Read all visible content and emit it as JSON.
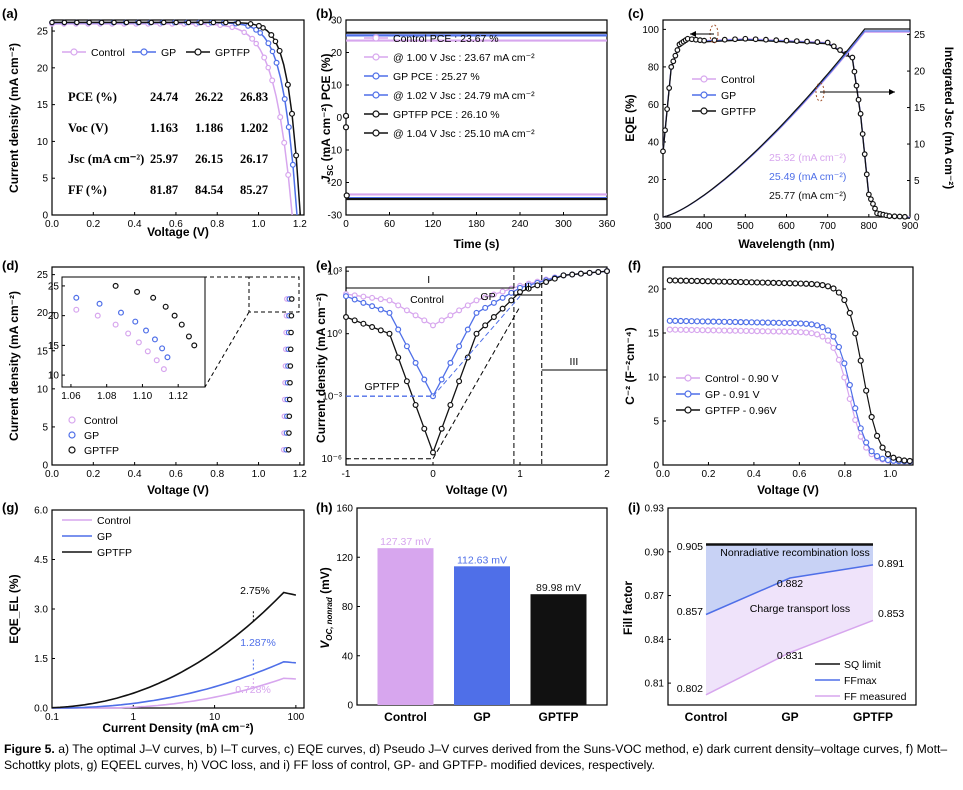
{
  "colors": {
    "control": "#d7a6ee",
    "control_dark": "#b07fd6",
    "gp": "#4f6fe8",
    "gptfp": "#111111"
  },
  "panels": {
    "a": {
      "label": "(a)",
      "xlabel": "Voltage (V)",
      "ylabel": "Current density (mA cm⁻²)",
      "xticks": [
        "0.0",
        "0.2",
        "0.4",
        "0.6",
        "0.8",
        "1.0",
        "1.2"
      ],
      "yticks": [
        "0",
        "5",
        "10",
        "15",
        "20",
        "25"
      ],
      "legend": [
        "Control",
        "GP",
        "GPTFP"
      ],
      "table": {
        "cols": [
          "",
          "Control",
          "GP",
          "GPTFP"
        ],
        "rows": [
          [
            "PCE (%)",
            "24.74",
            "26.22",
            "26.83"
          ],
          [
            "Voc (V)",
            "1.163",
            "1.186",
            "1.202"
          ],
          [
            "Jsc (mA cm⁻²)",
            "25.97",
            "26.15",
            "26.17"
          ],
          [
            "FF (%)",
            "81.87",
            "84.54",
            "85.27"
          ]
        ]
      }
    },
    "b": {
      "label": "(b)",
      "xlabel": "Time (s)",
      "ylabel_left": "J",
      "ylabel_left_sub": "SC",
      "ylabel_left_rest": " (mA cm⁻²) PCE (%)",
      "xticks": [
        "0",
        "60",
        "120",
        "180",
        "240",
        "300",
        "360"
      ],
      "yticks": [
        "-30",
        "-20",
        "-10",
        "0",
        "10",
        "20",
        "30"
      ],
      "legend": [
        "Control           PCE : 23.67 %",
        "@ 1.00 V Jsc : 23.67 mA cm⁻²",
        "GP                  PCE : 25.27 %",
        "@ 1.02 V Jsc : 24.79 mA cm⁻²",
        "GPTFP  PCE : 26.10 %",
        "@ 1.04 V Jsc : 25.10 mA cm⁻²"
      ]
    },
    "c": {
      "label": "(c)",
      "xlabel": "Wavelength (nm)",
      "ylabel": "EQE (%)",
      "ylabel_right": "Integrated Jsc (mA cm⁻²)",
      "xticks": [
        "300",
        "400",
        "500",
        "600",
        "700",
        "800",
        "900"
      ],
      "yticks": [
        "0",
        "20",
        "40",
        "60",
        "80",
        "100"
      ],
      "yticks_right": [
        "0",
        "5",
        "10",
        "15",
        "20",
        "25"
      ],
      "legend": [
        "Control",
        "GP",
        "GPTFP"
      ],
      "integrated": [
        "25.32 (mA cm⁻²)",
        "25.49 (mA cm⁻²)",
        "25.77 (mA cm⁻²)"
      ]
    },
    "d": {
      "label": "(d)",
      "xlabel": "Voltage (V)",
      "ylabel": "Current density (mA cm⁻²)",
      "xticks": [
        "0.0",
        "0.2",
        "0.4",
        "0.6",
        "0.8",
        "1.0",
        "1.2"
      ],
      "yticks": [
        "0",
        "5",
        "10",
        "15",
        "20",
        "25"
      ],
      "inset_xticks": [
        "1.06",
        "1.08",
        "1.10",
        "1.12"
      ],
      "inset_yticks": [
        "10",
        "15",
        "20",
        "25"
      ],
      "legend": [
        "Control",
        "GP",
        "GPTFP"
      ]
    },
    "e": {
      "label": "(e)",
      "xlabel": "Voltage (V)",
      "ylabel": "Current density (mA cm⁻²)",
      "xticks": [
        "-1",
        "0",
        "1",
        "2"
      ],
      "yticks": [
        "10⁻⁶",
        "10⁻³",
        "10⁰",
        "10³"
      ],
      "regions": [
        "I",
        "II",
        "III"
      ],
      "annotations": [
        "Control",
        "GP",
        "GPTFP"
      ]
    },
    "f": {
      "label": "(f)",
      "xlabel": "Voltage (V)",
      "ylabel": "C⁻² (F⁻²cm⁻⁴)",
      "xticks": [
        "0.0",
        "0.2",
        "0.4",
        "0.6",
        "0.8",
        "1.0"
      ],
      "yticks": [
        "0",
        "5",
        "10",
        "15",
        "20"
      ],
      "legend": [
        "Control - 0.90 V",
        "GP - 0.91 V",
        "GPTFP - 0.96V"
      ]
    },
    "g": {
      "label": "(g)",
      "xlabel": "Current Density (mA cm⁻²)",
      "ylabel": "EQE_EL (%)",
      "xticks": [
        "0.1",
        "1",
        "10",
        "100"
      ],
      "yticks": [
        "0.0",
        "1.5",
        "3.0",
        "4.5",
        "6.0"
      ],
      "legend": [
        "Control",
        "GP",
        "GPTFP"
      ],
      "annotations": [
        "2.75%",
        "1.287%",
        "0.728%"
      ]
    },
    "i": {
      "label": "(i)",
      "ylabel": "Fill factor",
      "yticks": [
        "0.81",
        "0.84",
        "0.87",
        "0.90",
        "0.93"
      ],
      "labels": [
        "Nonradiative recombination loss",
        "Charge transport loss"
      ],
      "legend": [
        "SQ limit",
        "FFmax",
        "FF measured"
      ],
      "values": [
        "0.905",
        "0.857",
        "0.882",
        "0.891",
        "0.802",
        "0.831",
        "0.853"
      ]
    }
  },
  "chart_data": [
    {
      "type": "line",
      "title": "(a) J–V curves",
      "xlabel": "Voltage (V)",
      "ylabel": "Current density (mA cm⁻²)",
      "xlim": [
        0,
        1.22
      ],
      "ylim": [
        0,
        26.5
      ],
      "series": [
        {
          "name": "Control",
          "voc": 1.163,
          "jsc": 25.97
        },
        {
          "name": "GP",
          "voc": 1.186,
          "jsc": 26.15
        },
        {
          "name": "GPTFP",
          "voc": 1.202,
          "jsc": 26.17
        }
      ]
    },
    {
      "type": "line",
      "title": "(b) I–T curves",
      "xlabel": "Time (s)",
      "xlim": [
        0,
        360
      ],
      "ylim": [
        -30,
        30
      ],
      "series": [
        {
          "name": "Control PCE",
          "value": 23.67
        },
        {
          "name": "Control Jsc",
          "value": -23.67
        },
        {
          "name": "GP PCE",
          "value": 25.27
        },
        {
          "name": "GP Jsc",
          "value": -24.79
        },
        {
          "name": "GPTFP PCE",
          "value": 26.1
        },
        {
          "name": "GPTFP Jsc",
          "value": -25.1
        }
      ]
    },
    {
      "type": "line",
      "title": "(c) EQE curves",
      "xlabel": "Wavelength (nm)",
      "ylabel": "EQE (%)",
      "xlim": [
        300,
        900
      ],
      "ylim": [
        0,
        105
      ],
      "x": [
        300,
        320,
        340,
        360,
        400,
        500,
        600,
        700,
        760,
        780,
        800,
        820,
        850,
        900
      ],
      "series": [
        {
          "name": "EQE",
          "values": [
            35,
            80,
            92,
            95,
            94,
            95,
            94,
            93,
            85,
            55,
            12,
            2,
            0.5,
            0
          ]
        },
        {
          "name": "Integrated Jsc Control",
          "final": 25.32
        },
        {
          "name": "Integrated Jsc GP",
          "final": 25.49
        },
        {
          "name": "Integrated Jsc GPTFP",
          "final": 25.77
        }
      ]
    },
    {
      "type": "scatter",
      "title": "(d) Pseudo J–V",
      "xlabel": "Voltage (V)",
      "ylabel": "Current density (mA cm⁻²)",
      "xlim": [
        0,
        1.22
      ],
      "ylim": [
        0,
        26
      ],
      "series": [
        {
          "name": "Control",
          "x": [
            1.063,
            1.075,
            1.085,
            1.092,
            1.098,
            1.103,
            1.108,
            1.112
          ],
          "y": [
            21,
            20,
            18.5,
            17,
            15.5,
            14,
            12.5,
            11
          ]
        },
        {
          "name": "GP",
          "x": [
            1.063,
            1.076,
            1.088,
            1.096,
            1.102,
            1.107,
            1.111,
            1.114
          ],
          "y": [
            23,
            22,
            20.5,
            19,
            17.5,
            16,
            14.5,
            13
          ]
        },
        {
          "name": "GPTFP",
          "x": [
            1.085,
            1.097,
            1.106,
            1.113,
            1.118,
            1.122,
            1.126,
            1.129
          ],
          "y": [
            25,
            24,
            23,
            21.5,
            20,
            18.5,
            16.5,
            15
          ]
        }
      ]
    },
    {
      "type": "line",
      "title": "(e) Dark current density–voltage",
      "xlabel": "Voltage (V)",
      "ylabel": "Current density (mA cm⁻²)",
      "xlim": [
        -1,
        2
      ],
      "ylim_log": [
        -6.3,
        3.2
      ],
      "series": [
        {
          "name": "Control",
          "x": [
            -1,
            -0.5,
            0,
            0.5,
            1,
            1.5,
            2
          ],
          "log10_y": [
            1.9,
            1.6,
            0.4,
            1.6,
            2.3,
            2.8,
            3.0
          ]
        },
        {
          "name": "GP",
          "x": [
            -1,
            -0.5,
            0,
            0.5,
            1,
            1.5,
            2
          ],
          "log10_y": [
            1.8,
            1.0,
            -3,
            1.0,
            2.2,
            2.8,
            3.0
          ]
        },
        {
          "name": "GPTFP",
          "x": [
            -1,
            -0.5,
            0,
            0.5,
            1,
            1.5,
            2
          ],
          "log10_y": [
            0.8,
            0.0,
            -5.7,
            0.0,
            2.0,
            2.8,
            3.0
          ]
        }
      ]
    },
    {
      "type": "scatter",
      "title": "(f) Mott–Schottky",
      "xlabel": "Voltage (V)",
      "ylabel": "C⁻² (F⁻²cm⁻⁴)",
      "xlim": [
        0,
        1.1
      ],
      "ylim": [
        0,
        22
      ],
      "series": [
        {
          "name": "Control - 0.90 V",
          "plateau": 15
        },
        {
          "name": "GP - 0.91 V",
          "plateau": 16
        },
        {
          "name": "GPTFP - 0.96V",
          "plateau": 20.6
        }
      ]
    },
    {
      "type": "line",
      "title": "(g) EQE_EL",
      "xlabel": "Current Density (mA cm⁻²)",
      "ylabel": "EQE_EL (%)",
      "xscale": "log",
      "xlim": [
        0.1,
        100
      ],
      "ylim": [
        0,
        6
      ],
      "series": [
        {
          "name": "Control",
          "marked": 0.728
        },
        {
          "name": "GP",
          "marked": 1.287
        },
        {
          "name": "GPTFP",
          "marked": 2.75
        }
      ]
    },
    {
      "type": "bar",
      "title": "(h) VOC loss",
      "ylabel": "V_OC, nonrad (mV)",
      "categories": [
        "Control",
        "GP",
        "GPTFP"
      ],
      "values": [
        127.37,
        112.63,
        89.98
      ],
      "value_labels": [
        "127.37 mV",
        "112.63 mV",
        "89.98 mV"
      ],
      "yticks": [
        "0",
        "40",
        "80",
        "120",
        "160"
      ],
      "ylim": [
        0,
        160
      ]
    },
    {
      "type": "line",
      "title": "(i) FF loss",
      "ylabel": "Fill factor",
      "categories": [
        "Control",
        "GP",
        "GPTFP"
      ],
      "ylim": [
        0.795,
        0.93
      ],
      "series": [
        {
          "name": "SQ limit",
          "values": [
            0.905,
            0.905,
            0.905
          ]
        },
        {
          "name": "FFmax",
          "values": [
            0.857,
            0.882,
            0.891
          ]
        },
        {
          "name": "FF measured",
          "values": [
            0.802,
            0.831,
            0.853
          ]
        }
      ]
    }
  ],
  "caption": {
    "lead": "Figure 5.",
    "text": "a) The optimal J–V curves, b) I–T curves, c) EQE curves, d) Pseudo J–V curves derived from the Suns-VOC method, e) dark current density–voltage curves, f) Mott–Schottky plots, g) EQEEL curves, h) VOC loss, and i) FF loss of control, GP- and GPTFP- modified devices, respectively."
  }
}
